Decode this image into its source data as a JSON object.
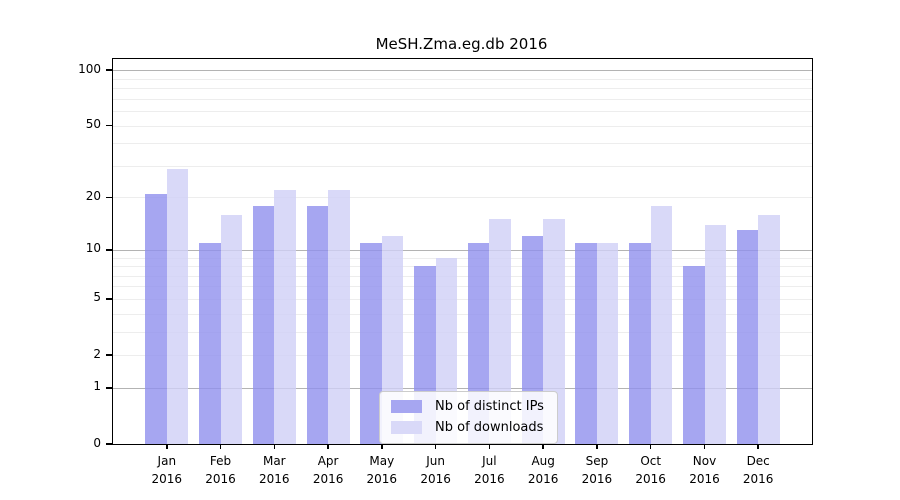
{
  "chart_data": {
    "type": "bar",
    "title": "MeSH.Zma.eg.db 2016",
    "months": [
      "Jan",
      "Feb",
      "Mar",
      "Apr",
      "May",
      "Jun",
      "Jul",
      "Aug",
      "Sep",
      "Oct",
      "Nov",
      "Dec"
    ],
    "year": "2016",
    "categories": [
      "Jan 2016",
      "Feb 2016",
      "Mar 2016",
      "Apr 2016",
      "May 2016",
      "Jun 2016",
      "Jul 2016",
      "Aug 2016",
      "Sep 2016",
      "Oct 2016",
      "Nov 2016",
      "Dec 2016"
    ],
    "series": [
      {
        "name": "Nb of distinct IPs",
        "color": "#a6a6f1",
        "fill": "rgba(144,144,237,0.8)",
        "values": [
          21,
          11,
          18,
          18,
          11,
          8,
          11,
          12,
          11,
          11,
          8,
          13
        ]
      },
      {
        "name": "Nb of downloads",
        "color": "#d9d9f8",
        "fill": "rgba(208,208,246,0.8)",
        "values": [
          29,
          16,
          22,
          22,
          12,
          9,
          15,
          15,
          11,
          18,
          14,
          16
        ]
      }
    ],
    "yscale": "log1p",
    "ylim": [
      0,
      115
    ],
    "yticks": [
      100,
      50,
      20,
      10,
      5,
      2,
      1,
      0
    ],
    "grid_major": [
      1,
      10,
      100
    ],
    "grid_minor": [
      2,
      3,
      4,
      5,
      6,
      7,
      8,
      9,
      20,
      30,
      40,
      50,
      60,
      70,
      80,
      90
    ],
    "legend": {
      "position": "lower center"
    },
    "colors": {
      "grid_major": "#b3b3b3",
      "grid_minor": "#ededed",
      "axis": "#000000",
      "background": "#ffffff",
      "text": "#000000"
    }
  }
}
